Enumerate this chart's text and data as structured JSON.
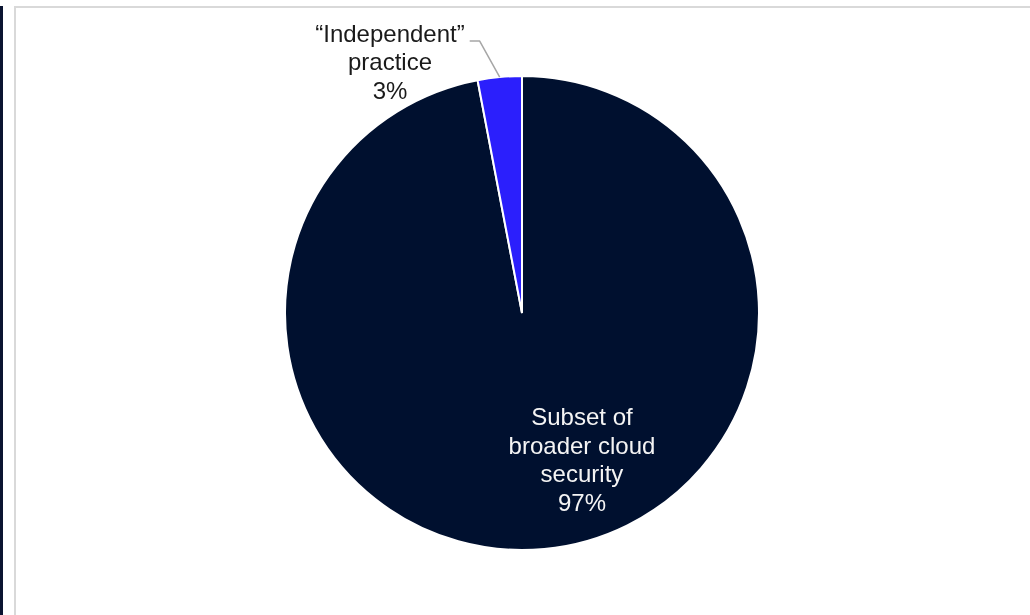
{
  "chart_data": {
    "type": "pie",
    "categories": [
      "Subset of broader cloud security",
      "“Independent” practice"
    ],
    "values": [
      97,
      3
    ],
    "colors": [
      "#00102f",
      "#2b1ffc"
    ],
    "value_labels": [
      "97%",
      "3%"
    ]
  }
}
